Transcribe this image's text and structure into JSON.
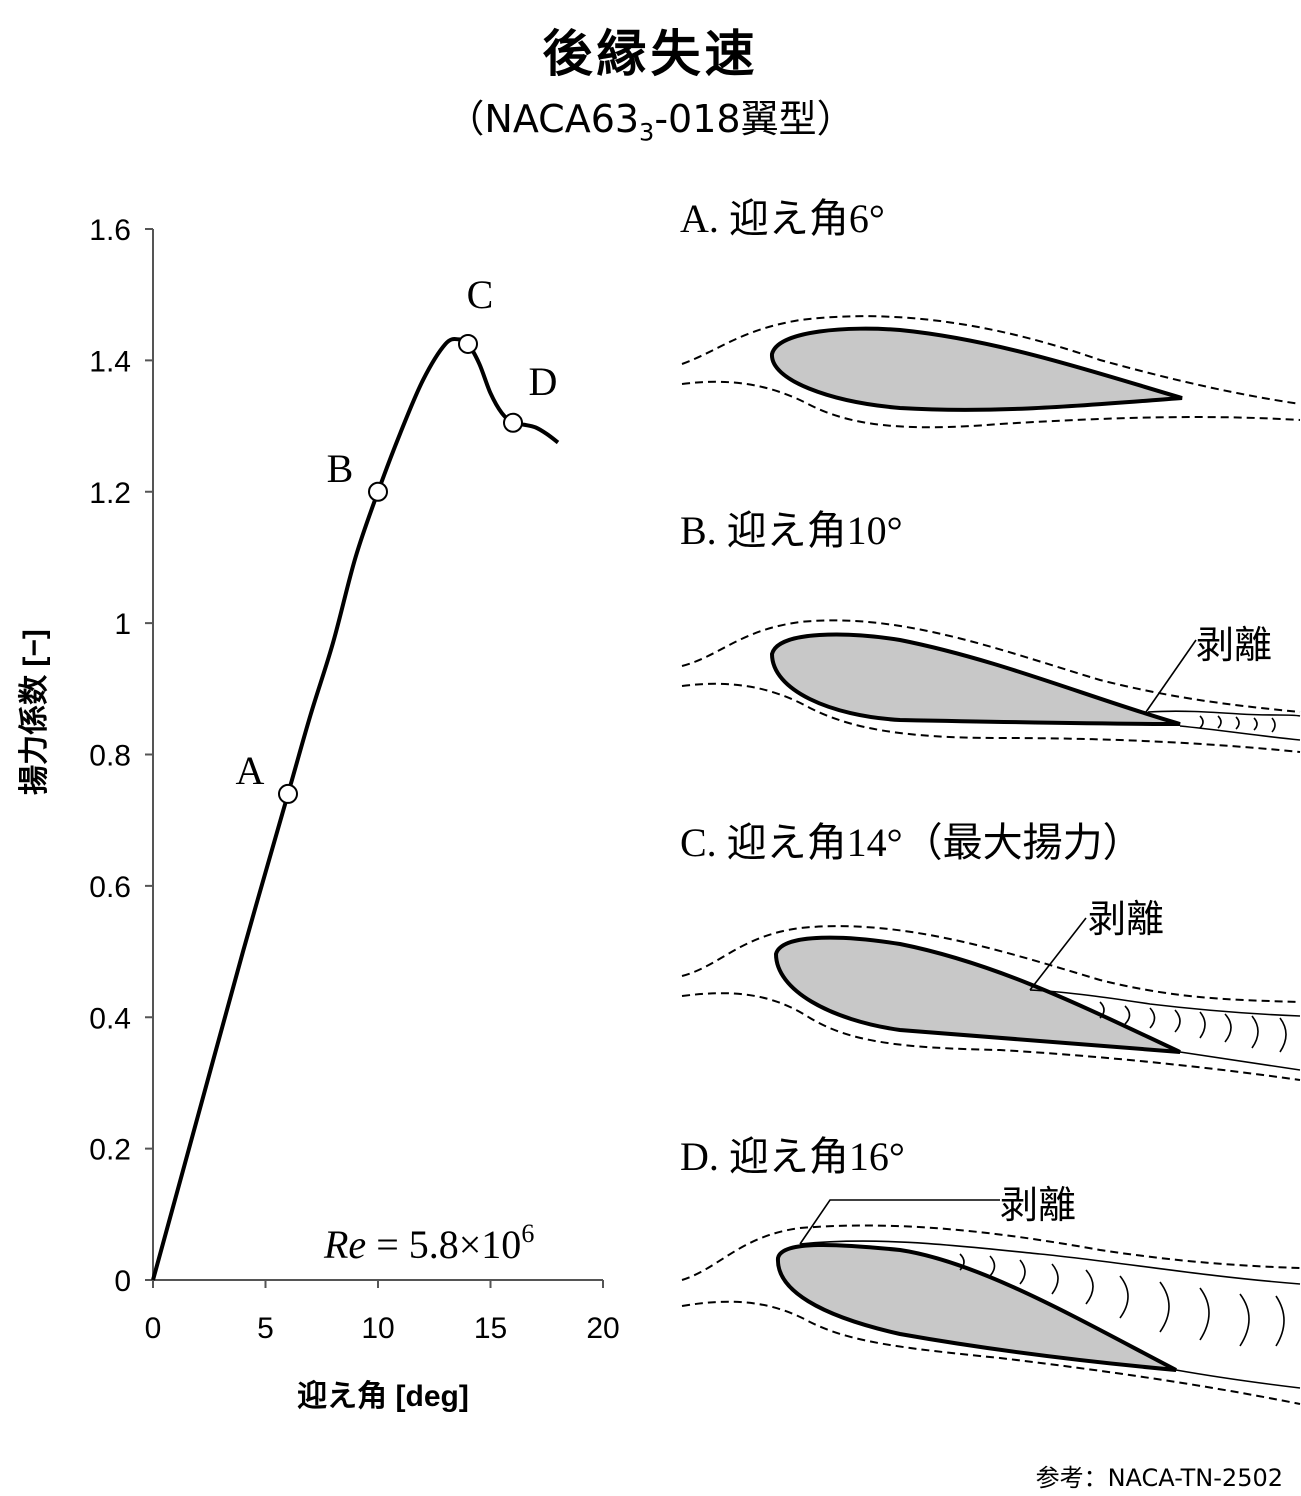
{
  "title": "後縁失速",
  "subtitle_pre": "（NACA63",
  "subtitle_sub": "3",
  "subtitle_post": "-018翼型）",
  "reynolds": {
    "var": "Re",
    "text": " = 5.8×10",
    "exp": "6"
  },
  "chart_data": {
    "type": "line",
    "xlabel": "迎え角 [deg]",
    "ylabel": "揚力係数 [−]",
    "xlim": [
      0,
      20
    ],
    "ylim": [
      0,
      1.6
    ],
    "xticks": [
      "0",
      "5",
      "10",
      "15",
      "20"
    ],
    "yticks": [
      "0",
      "0.2",
      "0.4",
      "0.6",
      "0.8",
      "1",
      "1.2",
      "1.4",
      "1.6"
    ],
    "grid": false,
    "series": [
      {
        "x": [
          0,
          2,
          4,
          6,
          7,
          8,
          9,
          10,
          11,
          12,
          13,
          13.6,
          14,
          14.5,
          15,
          15.5,
          16,
          16.5,
          17,
          17.5,
          18
        ],
        "y": [
          0,
          0.25,
          0.5,
          0.74,
          0.86,
          0.97,
          1.1,
          1.2,
          1.29,
          1.37,
          1.425,
          1.432,
          1.425,
          1.395,
          1.35,
          1.32,
          1.305,
          1.302,
          1.298,
          1.288,
          1.275
        ]
      }
    ],
    "points": [
      {
        "label": "A",
        "x": 6,
        "y": 0.74
      },
      {
        "label": "B",
        "x": 10,
        "y": 1.2
      },
      {
        "label": "C",
        "x": 14,
        "y": 1.425
      },
      {
        "label": "D",
        "x": 16,
        "y": 1.305
      }
    ]
  },
  "diagrams": [
    {
      "label": "A. 迎え角6°"
    },
    {
      "label": "B. 迎え角10°",
      "callout": "剥離"
    },
    {
      "label": "C. 迎え角14°（最大揚力）",
      "callout": "剥離"
    },
    {
      "label": "D. 迎え角16°",
      "callout": "剥離"
    }
  ],
  "reference": "参考：NACA-TN-2502"
}
